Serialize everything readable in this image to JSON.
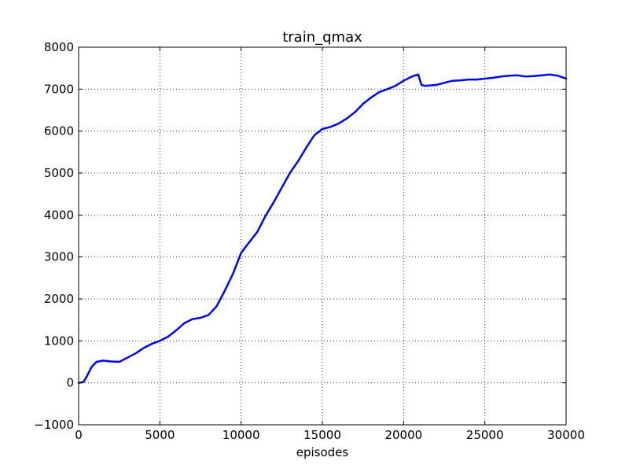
{
  "chart_data": {
    "type": "line",
    "title": "train_qmax",
    "xlabel": "episodes",
    "ylabel": "",
    "xlim": [
      0,
      30000
    ],
    "ylim": [
      -1000,
      8000
    ],
    "xticks": [
      0,
      5000,
      10000,
      15000,
      20000,
      25000,
      30000
    ],
    "yticks": [
      -1000,
      0,
      1000,
      2000,
      3000,
      4000,
      5000,
      6000,
      7000,
      8000
    ],
    "xtick_labels": [
      "0",
      "5000",
      "10000",
      "15000",
      "20000",
      "25000",
      "30000"
    ],
    "ytick_labels": [
      "−1000",
      "0",
      "1000",
      "2000",
      "3000",
      "4000",
      "5000",
      "6000",
      "7000",
      "8000"
    ],
    "grid": true,
    "grid_style": "dotted",
    "series": [
      {
        "color": "#0000ff",
        "x": [
          0,
          300,
          500,
          800,
          1100,
          1500,
          2000,
          2500,
          3000,
          3500,
          4000,
          4500,
          5000,
          5500,
          6000,
          6500,
          7000,
          7500,
          8000,
          8500,
          9000,
          9500,
          10000,
          10500,
          11000,
          11500,
          12000,
          12500,
          13000,
          13500,
          14000,
          14500,
          15000,
          15500,
          16000,
          16500,
          17000,
          17500,
          18000,
          18500,
          19000,
          19500,
          20000,
          20500,
          20900,
          21100,
          21300,
          22000,
          22500,
          23000,
          23500,
          24000,
          24500,
          25000,
          25500,
          26000,
          26500,
          27000,
          27500,
          28000,
          28500,
          29000,
          29500,
          30000
        ],
        "y": [
          0,
          20,
          150,
          380,
          500,
          530,
          510,
          500,
          600,
          700,
          830,
          930,
          1000,
          1100,
          1250,
          1420,
          1520,
          1550,
          1620,
          1830,
          2200,
          2600,
          3100,
          3350,
          3600,
          3980,
          4300,
          4650,
          5000,
          5280,
          5600,
          5900,
          6050,
          6100,
          6180,
          6300,
          6450,
          6650,
          6800,
          6930,
          7000,
          7080,
          7200,
          7300,
          7350,
          7100,
          7080,
          7100,
          7150,
          7200,
          7210,
          7230,
          7230,
          7250,
          7270,
          7300,
          7320,
          7330,
          7300,
          7310,
          7330,
          7350,
          7320,
          7250
        ]
      }
    ]
  }
}
